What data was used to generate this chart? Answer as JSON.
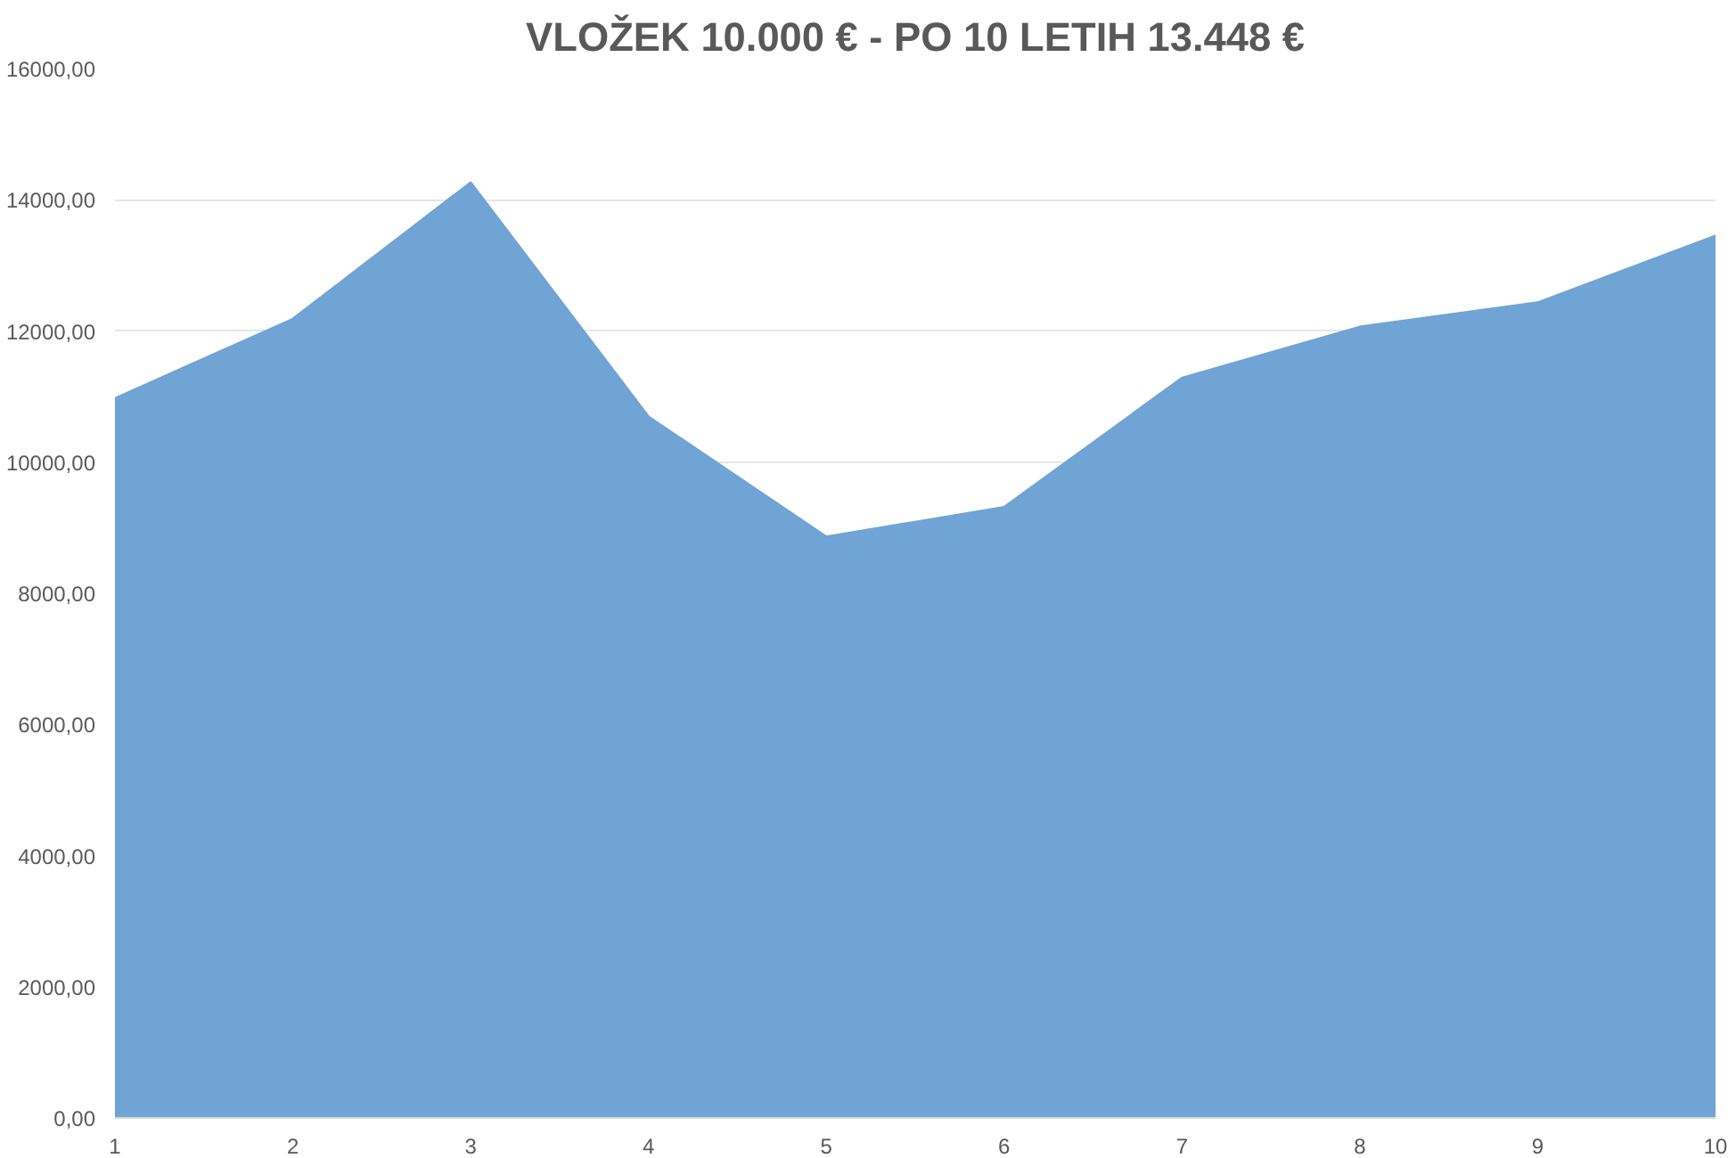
{
  "chart_data": {
    "type": "area",
    "title": "VLOŽEK 10.000 € - PO 10 LETIH 13.448 €",
    "x": [
      1,
      2,
      3,
      4,
      5,
      6,
      7,
      8,
      9,
      10
    ],
    "series": [
      {
        "color": "#70a4d4",
        "values": [
          10970,
          12180,
          14260,
          10690,
          8860,
          9310,
          11280,
          12060,
          12430,
          13448
        ]
      }
    ],
    "xlim": [
      1,
      10
    ],
    "xticks": [
      1,
      2,
      3,
      4,
      5,
      6,
      7,
      8,
      9,
      10
    ],
    "ylim": [
      0,
      16000
    ],
    "yticks": [
      {
        "value": 0,
        "label": "0,00"
      },
      {
        "value": 2000,
        "label": "2000,00"
      },
      {
        "value": 4000,
        "label": "4000,00"
      },
      {
        "value": 6000,
        "label": "6000,00"
      },
      {
        "value": 8000,
        "label": "8000,00"
      },
      {
        "value": 10000,
        "label": "10000,00"
      },
      {
        "value": 12000,
        "label": "12000,00"
      },
      {
        "value": 14000,
        "label": "14000,00"
      },
      {
        "value": 16000,
        "label": "16000,00"
      }
    ],
    "grid": "y"
  }
}
